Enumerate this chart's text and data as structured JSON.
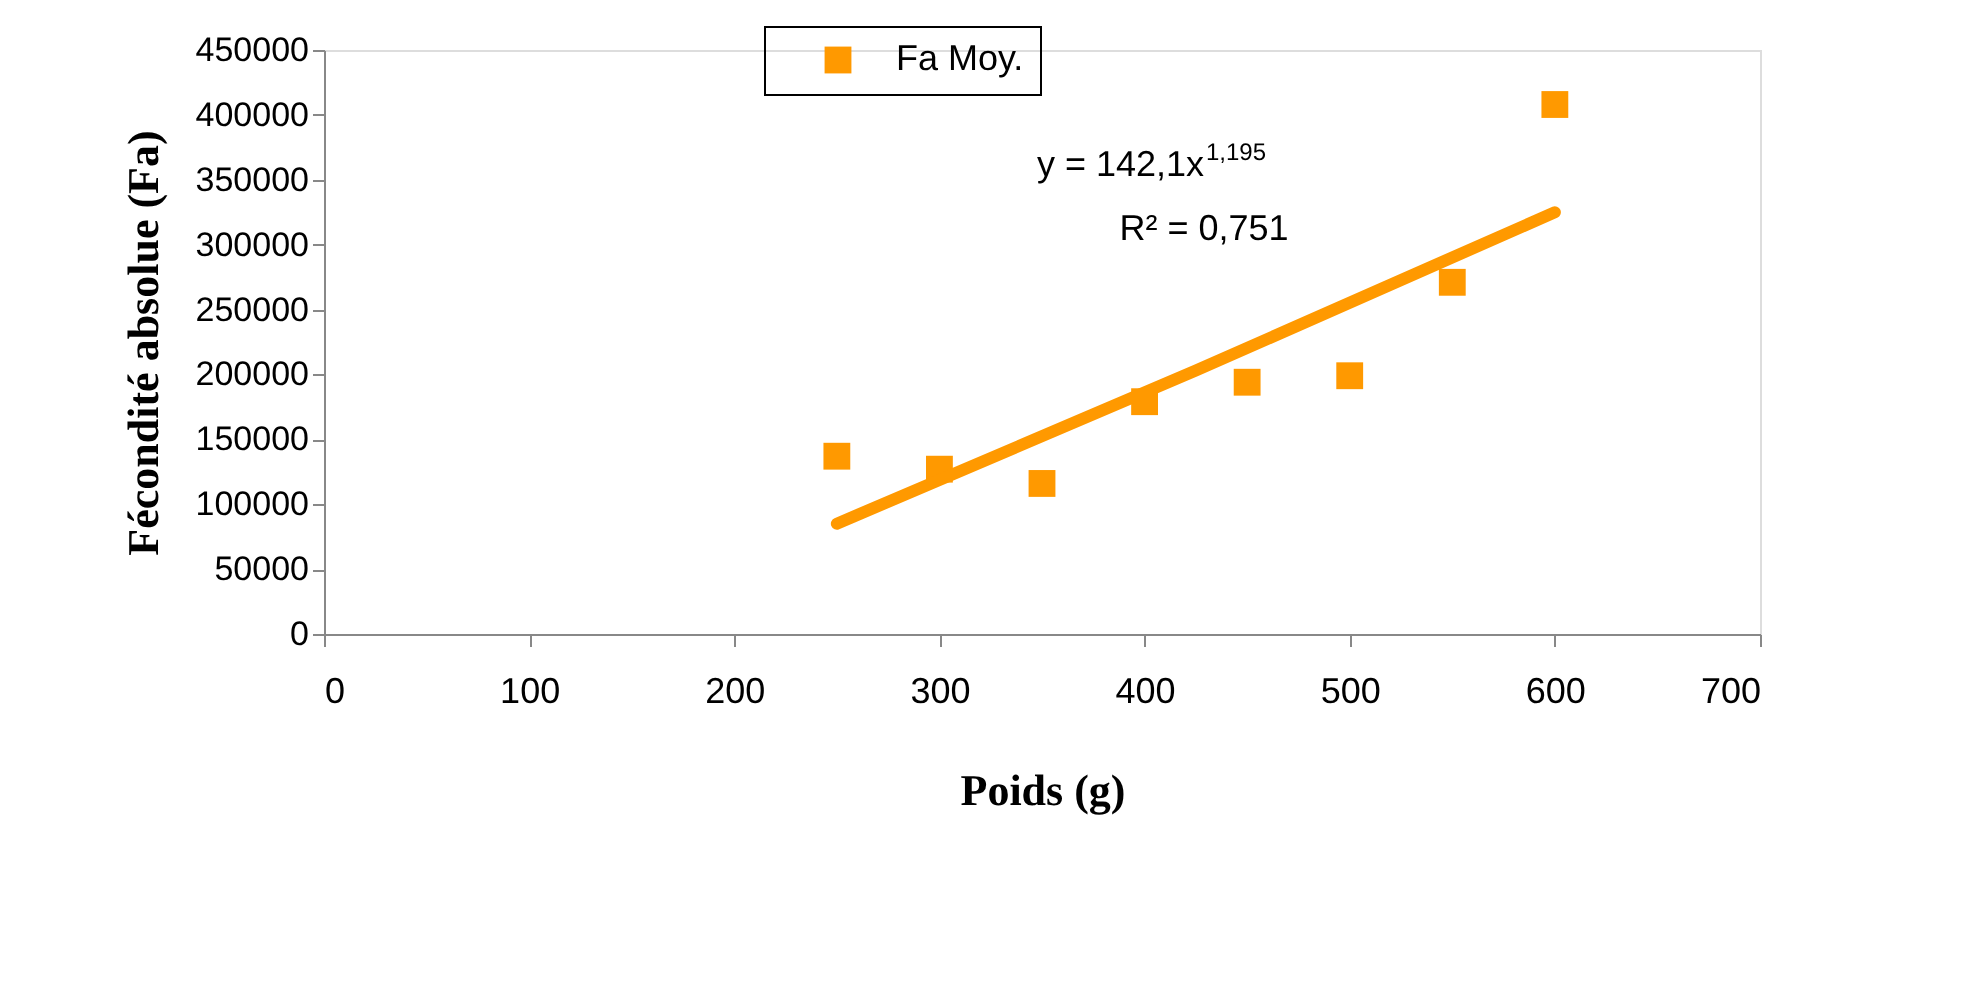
{
  "chart_data": {
    "type": "scatter",
    "xlabel": "Poids (g)",
    "ylabel": "Fécondité absolue (Fa)",
    "xlim": [
      0,
      700
    ],
    "xticks": [
      0,
      100,
      200,
      300,
      400,
      500,
      600,
      700
    ],
    "ylim": [
      0,
      450000
    ],
    "yticks": [
      0,
      50000,
      100000,
      150000,
      200000,
      250000,
      300000,
      350000,
      400000,
      450000
    ],
    "grid": false,
    "legend": "top",
    "marker": "square",
    "annotations": [
      "y = 142,1x$^{1,195}$",
      "R² = 0,751"
    ],
    "series": [
      {
        "name": "Fa Moy.",
        "type": "scatter",
        "color": "#ff9900",
        "x": [
          250,
          300,
          350,
          400,
          450,
          500,
          550,
          600
        ],
        "values": [
          137000,
          127000,
          116000,
          179000,
          194000,
          199000,
          271000,
          408000
        ]
      },
      {
        "type": "line",
        "color": "#ff9900",
        "line_style": "solid",
        "marker": "none",
        "x": [
          250,
          425,
          600
        ],
        "values": [
          85000,
          203000,
          325000
        ]
      }
    ]
  }
}
